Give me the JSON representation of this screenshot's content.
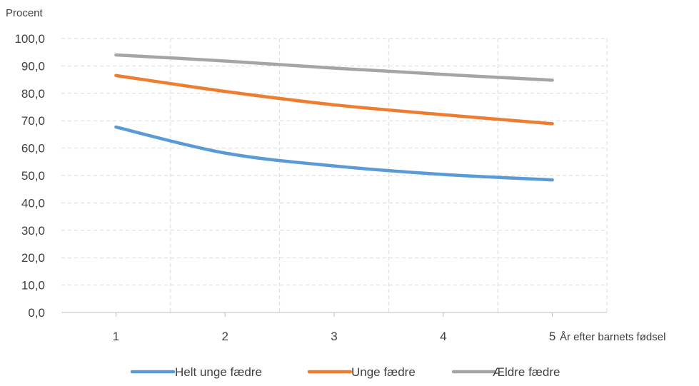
{
  "chart_data": {
    "type": "line",
    "ylabel": "Procent",
    "xlabel": "År efter barnets fødsel",
    "categories": [
      "1",
      "2",
      "3",
      "4",
      "5"
    ],
    "ylim": [
      0,
      100
    ],
    "yticks": [
      "0,0",
      "10,0",
      "20,0",
      "30,0",
      "40,0",
      "50,0",
      "60,0",
      "70,0",
      "80,0",
      "90,0",
      "100,0"
    ],
    "grid": true,
    "legend_position": "bottom",
    "series": [
      {
        "name": "Helt unge fædre",
        "color": "#5B9BD5",
        "values": [
          67.7,
          58.2,
          53.5,
          50.4,
          48.4
        ]
      },
      {
        "name": "Unge fædre",
        "color": "#ED7D31",
        "values": [
          86.5,
          80.7,
          75.8,
          72.2,
          68.9
        ]
      },
      {
        "name": "Ældre fædre",
        "color": "#A5A5A5",
        "values": [
          94.0,
          91.8,
          89.2,
          86.9,
          84.8
        ]
      }
    ]
  }
}
